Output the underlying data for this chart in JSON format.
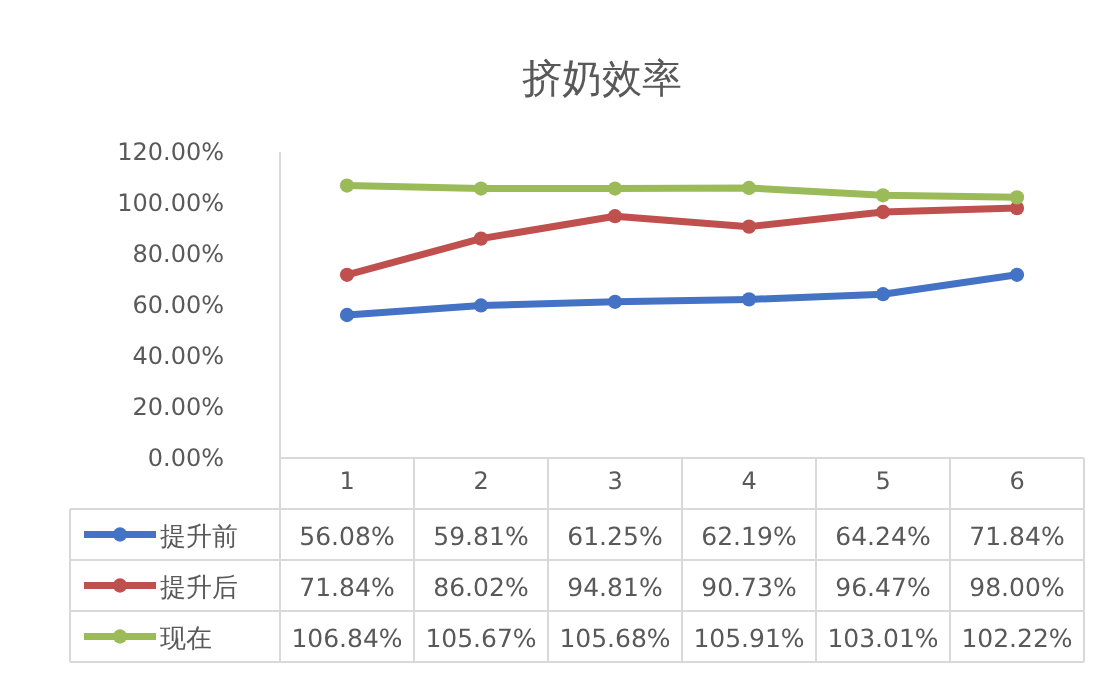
{
  "chart_data": {
    "type": "line",
    "title": "挤奶效率",
    "categories": [
      "1",
      "2",
      "3",
      "4",
      "5",
      "6"
    ],
    "ylim": [
      0,
      120
    ],
    "yticks": [
      {
        "value": 0,
        "label": "0.00%"
      },
      {
        "value": 20,
        "label": "20.00%"
      },
      {
        "value": 40,
        "label": "40.00%"
      },
      {
        "value": 60,
        "label": "60.00%"
      },
      {
        "value": 80,
        "label": "80.00%"
      },
      {
        "value": 100,
        "label": "100.00%"
      },
      {
        "value": 120,
        "label": "120.00%"
      }
    ],
    "marker": "circle",
    "line_style": "solid",
    "legend": "bottom",
    "series": [
      {
        "name": "提升前",
        "color": "#4472c4",
        "values": [
          56.08,
          59.81,
          61.25,
          62.19,
          64.24,
          71.84
        ],
        "value_labels": [
          "56.08%",
          "59.81%",
          "61.25%",
          "62.19%",
          "64.24%",
          "71.84%"
        ]
      },
      {
        "name": "提升后",
        "color": "#c0504d",
        "values": [
          71.84,
          86.02,
          94.81,
          90.73,
          96.47,
          98.0
        ],
        "value_labels": [
          "71.84%",
          "86.02%",
          "94.81%",
          "90.73%",
          "96.47%",
          "98.00%"
        ]
      },
      {
        "name": "现在",
        "color": "#9bbb59",
        "values": [
          106.84,
          105.67,
          105.68,
          105.91,
          103.01,
          102.22
        ],
        "value_labels": [
          "106.84%",
          "105.67%",
          "105.68%",
          "105.91%",
          "103.01%",
          "102.22%"
        ]
      }
    ]
  }
}
